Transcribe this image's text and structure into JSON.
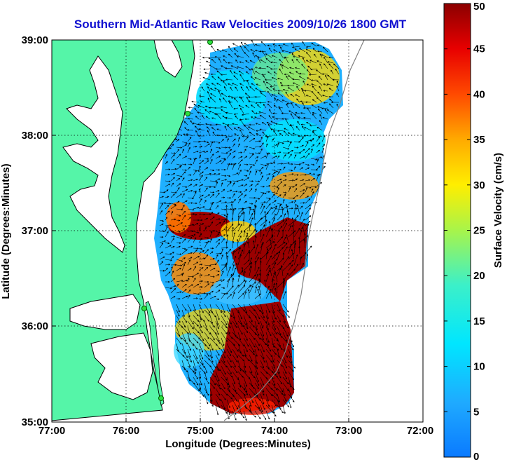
{
  "title": "Southern Mid-Atlantic Raw Velocities 2009/10/26 1800 GMT",
  "xlabel": "Longitude (Degrees:Minutes)",
  "ylabel": "Latitude (Degrees:Minutes)",
  "x_ticks": [
    "77:00",
    "76:00",
    "75:00",
    "74:00",
    "73:00",
    "72:00"
  ],
  "y_ticks": [
    "39:00",
    "38:00",
    "37:00",
    "36:00",
    "35:00"
  ],
  "colorbar": {
    "label": "Surface Velocity (cm/s)",
    "ticks": [
      "0",
      "5",
      "10",
      "15",
      "20",
      "25",
      "30",
      "35",
      "40",
      "45",
      "50"
    ],
    "min": 0,
    "max": 50
  },
  "colors": {
    "title": "#1010d0",
    "land": "#55f5a8",
    "ocean": "#ffffff"
  }
}
